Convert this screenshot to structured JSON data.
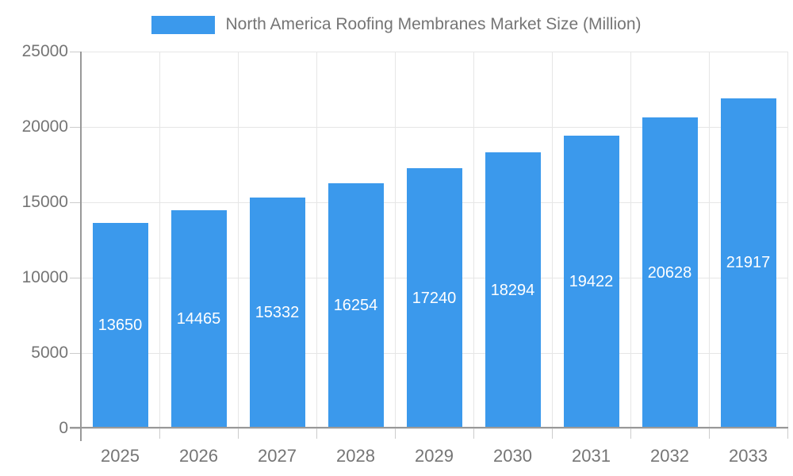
{
  "chart_data": {
    "type": "bar",
    "title": "North America Roofing Membranes Market Size (Million)",
    "categories": [
      "2025",
      "2026",
      "2027",
      "2028",
      "2029",
      "2030",
      "2031",
      "2032",
      "2033"
    ],
    "values": [
      13650,
      14465,
      15332,
      16254,
      17240,
      18294,
      19422,
      20628,
      21917
    ],
    "xlabel": "",
    "ylabel": "",
    "ylim": [
      0,
      25000
    ],
    "yticks": [
      0,
      5000,
      10000,
      15000,
      20000,
      25000
    ],
    "grid": true,
    "legend_position": "top",
    "value_labels": "inside-center-white",
    "colors": {
      "bar": "#3B99EC",
      "value_label": "#FFFFFF",
      "axis_text": "#757575",
      "gridline": "#E6E6E6",
      "axis_line": "#999999",
      "tick": "#CCCCCC"
    }
  }
}
